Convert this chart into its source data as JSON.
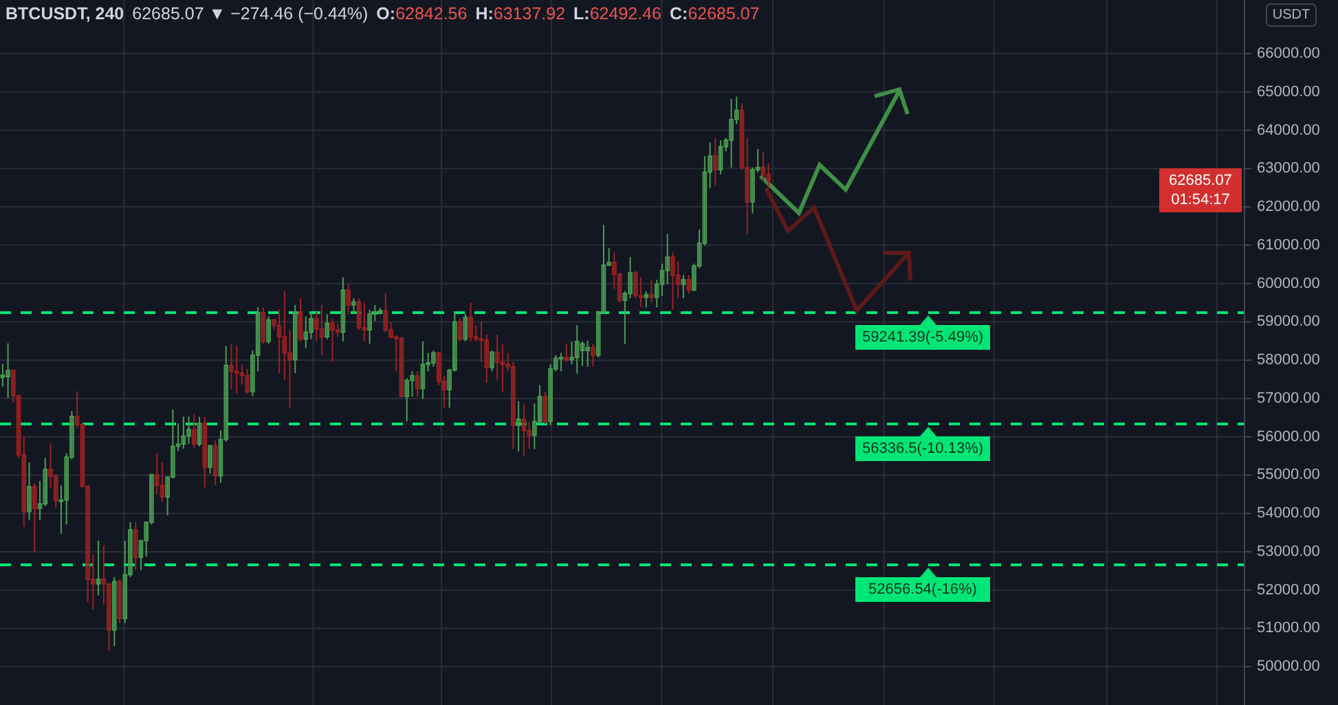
{
  "chart_data": {
    "type": "candlestick",
    "title": "BTCUSDT, 240",
    "subtitle": "62685.07 ▼ −274.46 (−0.44%)",
    "ylabel": "USDT",
    "categories": [
      null,
      null,
      null,
      null,
      null,
      null,
      null,
      null,
      null,
      null,
      null,
      null,
      null,
      null,
      null,
      null,
      null,
      null,
      null,
      null,
      null,
      null,
      null,
      null,
      null,
      null,
      null,
      null,
      null,
      null,
      null,
      null,
      null,
      null,
      null,
      null,
      null,
      null,
      null,
      null,
      null,
      null,
      null,
      null,
      null,
      null,
      null,
      null,
      null,
      null,
      null,
      null,
      null,
      null,
      null,
      null,
      null,
      null,
      null,
      null,
      null,
      null,
      null,
      null,
      null,
      null,
      null,
      null,
      null,
      null,
      null,
      null,
      null,
      null,
      null,
      null,
      null,
      null,
      null,
      null,
      null,
      null,
      null,
      null,
      null,
      null,
      null,
      null,
      null,
      null,
      null,
      null,
      null,
      null,
      null,
      null,
      null,
      null,
      null,
      null,
      null,
      null,
      null,
      null,
      null,
      null,
      null,
      null,
      null,
      null,
      null,
      null,
      null,
      null,
      null,
      null,
      null,
      null,
      null,
      null,
      null,
      null,
      null,
      null,
      null,
      null,
      null,
      null,
      null,
      null,
      null,
      null,
      null,
      null,
      null,
      null,
      null,
      null,
      null,
      null,
      null,
      null,
      null,
      null,
      null,
      null,
      null,
      null,
      null,
      null,
      null,
      null,
      null,
      null,
      null,
      null,
      null,
      null,
      null,
      null,
      null,
      null,
      null,
      null,
      null,
      null,
      null,
      null,
      null,
      null,
      null,
      null,
      null,
      null,
      null,
      null,
      null,
      null,
      null,
      null,
      null,
      null,
      null,
      null,
      null,
      null,
      null,
      null,
      null,
      null,
      null,
      null,
      null,
      null,
      null,
      null,
      null,
      null,
      null,
      null,
      null,
      null,
      null,
      null,
      null,
      null,
      null,
      null,
      null,
      null,
      null,
      null,
      null,
      null,
      null,
      null,
      null,
      null,
      null,
      null,
      null,
      null,
      null,
      null,
      null,
      null,
      null,
      null,
      null,
      null,
      null,
      null,
      null,
      null
    ],
    "ohlc": [
      [
        57550,
        57900,
        57310,
        57610
      ],
      [
        57570,
        58440,
        57010,
        57730
      ],
      [
        57730,
        57750,
        56890,
        57070
      ],
      [
        57070,
        57100,
        55450,
        55530
      ],
      [
        55530,
        55990,
        53650,
        54050
      ],
      [
        54050,
        55330,
        53830,
        54700
      ],
      [
        54700,
        54790,
        52990,
        54130
      ],
      [
        54130,
        54850,
        53830,
        54250
      ],
      [
        54250,
        55450,
        54190,
        55150
      ],
      [
        55150,
        55830,
        54670,
        54970
      ],
      [
        54970,
        55030,
        54160,
        54340
      ],
      [
        54340,
        54730,
        53470,
        54350
      ],
      [
        54350,
        55570,
        53710,
        55470
      ],
      [
        55470,
        56670,
        55410,
        56530
      ],
      [
        56530,
        57190,
        56230,
        56320
      ],
      [
        56320,
        56350,
        54670,
        54710
      ],
      [
        54710,
        54730,
        51680,
        52280
      ],
      [
        52280,
        52930,
        51500,
        52160
      ],
      [
        52160,
        53290,
        51860,
        52280
      ],
      [
        52280,
        53170,
        51620,
        52160
      ],
      [
        52160,
        52160,
        50420,
        50960
      ],
      [
        50960,
        52340,
        50540,
        52220
      ],
      [
        52220,
        52280,
        51140,
        51260
      ],
      [
        51260,
        53290,
        51140,
        52400
      ],
      [
        52400,
        53770,
        52340,
        53570
      ],
      [
        53570,
        53770,
        52520,
        52850
      ],
      [
        52850,
        53290,
        52520,
        53290
      ],
      [
        53290,
        53770,
        52870,
        53770
      ],
      [
        53770,
        55030,
        53710,
        55010
      ],
      [
        55010,
        55570,
        54490,
        54730
      ],
      [
        54730,
        55330,
        54310,
        54430
      ],
      [
        54430,
        54950,
        53950,
        54950
      ],
      [
        54950,
        56710,
        54910,
        55750
      ],
      [
        55750,
        56350,
        55630,
        55810
      ],
      [
        55810,
        56530,
        55690,
        56020
      ],
      [
        56020,
        56530,
        55810,
        56190
      ],
      [
        56190,
        56590,
        55690,
        55810
      ],
      [
        55810,
        56520,
        55750,
        56350
      ],
      [
        56350,
        56520,
        54680,
        55210
      ],
      [
        55210,
        55770,
        55040,
        55770
      ],
      [
        55770,
        55900,
        54740,
        54980
      ],
      [
        54980,
        56170,
        54800,
        55930
      ],
      [
        55930,
        58370,
        55870,
        57860
      ],
      [
        57860,
        58430,
        57240,
        57710
      ],
      [
        57710,
        58370,
        57120,
        57660
      ],
      [
        57660,
        57890,
        57360,
        57600
      ],
      [
        57600,
        57770,
        57120,
        57180
      ],
      [
        57180,
        58250,
        57060,
        58130
      ],
      [
        58130,
        59380,
        57710,
        59240
      ],
      [
        59240,
        59380,
        58430,
        58490
      ],
      [
        58490,
        59140,
        58430,
        59050
      ],
      [
        59050,
        59080,
        58790,
        58910
      ],
      [
        58910,
        59320,
        57660,
        58610
      ],
      [
        58610,
        59800,
        57480,
        58190
      ],
      [
        58190,
        58790,
        56760,
        58010
      ],
      [
        58010,
        59440,
        57660,
        59260
      ],
      [
        59260,
        59620,
        58490,
        58550
      ],
      [
        58550,
        59140,
        58310,
        58730
      ],
      [
        58730,
        59260,
        58550,
        59080
      ],
      [
        59080,
        59260,
        58490,
        58810
      ],
      [
        58810,
        59440,
        58130,
        58610
      ],
      [
        58610,
        59200,
        58550,
        58960
      ],
      [
        58960,
        59080,
        57950,
        58790
      ],
      [
        58790,
        58950,
        58610,
        58730
      ],
      [
        58730,
        60160,
        58490,
        59830
      ],
      [
        59830,
        59980,
        59200,
        59440
      ],
      [
        59440,
        59620,
        59200,
        59520
      ],
      [
        59520,
        59620,
        58790,
        58850
      ],
      [
        58850,
        59500,
        58490,
        58790
      ],
      [
        58790,
        59320,
        58430,
        59200
      ],
      [
        59200,
        59440,
        59020,
        59260
      ],
      [
        59260,
        59360,
        59200,
        59290
      ],
      [
        59290,
        59760,
        58730,
        58790
      ],
      [
        58790,
        59000,
        58570,
        58600
      ],
      [
        58600,
        58650,
        57710,
        58570
      ],
      [
        58570,
        58600,
        57050,
        57050
      ],
      [
        57050,
        57530,
        56400,
        57470
      ],
      [
        57470,
        57710,
        57050,
        57590
      ],
      [
        57590,
        57710,
        57050,
        57260
      ],
      [
        57260,
        58490,
        56990,
        57890
      ],
      [
        57890,
        58190,
        57710,
        57930
      ],
      [
        57930,
        58250,
        57830,
        58190
      ],
      [
        58190,
        58210,
        57350,
        57450
      ],
      [
        57450,
        57590,
        56760,
        57230
      ],
      [
        57230,
        57770,
        56760,
        57740
      ],
      [
        57740,
        59270,
        57710,
        59000
      ],
      [
        59000,
        59090,
        58490,
        58550
      ],
      [
        58550,
        59210,
        58490,
        59120
      ],
      [
        59120,
        59510,
        58490,
        58610
      ],
      [
        58610,
        58910,
        58490,
        58550
      ],
      [
        58550,
        59000,
        57950,
        58520
      ],
      [
        58520,
        58670,
        57410,
        57810
      ],
      [
        57810,
        58250,
        57710,
        58210
      ],
      [
        58210,
        58670,
        57470,
        57950
      ],
      [
        57950,
        58430,
        57170,
        57890
      ],
      [
        57890,
        58190,
        57710,
        57830
      ],
      [
        57830,
        57950,
        55680,
        56300
      ],
      [
        56300,
        56930,
        55620,
        56460
      ],
      [
        56460,
        56870,
        55500,
        56160
      ],
      [
        56160,
        56400,
        55680,
        56040
      ],
      [
        56040,
        56870,
        55680,
        56400
      ],
      [
        56400,
        57350,
        56340,
        57050
      ],
      [
        57050,
        57170,
        56340,
        56400
      ],
      [
        56400,
        57890,
        56300,
        57770
      ],
      [
        57770,
        58130,
        57710,
        58050
      ],
      [
        58050,
        58190,
        57710,
        58070
      ],
      [
        58070,
        58430,
        57950,
        58010
      ],
      [
        58010,
        58490,
        57890,
        58070
      ],
      [
        58070,
        58910,
        57650,
        58490
      ],
      [
        58250,
        58490,
        57850,
        58430
      ],
      [
        58250,
        58510,
        57830,
        58330
      ],
      [
        58330,
        58430,
        57830,
        58130
      ],
      [
        58130,
        59290,
        58070,
        59260
      ],
      [
        59260,
        61530,
        59200,
        60480
      ],
      [
        60480,
        60930,
        60460,
        60550
      ],
      [
        60550,
        60810,
        59860,
        60240
      ],
      [
        60240,
        60280,
        59500,
        59560
      ],
      [
        59560,
        59800,
        58420,
        59740
      ],
      [
        59740,
        60690,
        59620,
        60280
      ],
      [
        60280,
        60340,
        59620,
        59680
      ],
      [
        59680,
        60160,
        59380,
        59640
      ],
      [
        59640,
        59800,
        59380,
        59710
      ],
      [
        59710,
        60100,
        59500,
        59640
      ],
      [
        59640,
        60100,
        59380,
        59980
      ],
      [
        59980,
        60520,
        59680,
        60340
      ],
      [
        60340,
        61290,
        59980,
        60690
      ],
      [
        60690,
        60810,
        59320,
        60220
      ],
      [
        60220,
        60580,
        59620,
        59980
      ],
      [
        59980,
        60220,
        59620,
        60100
      ],
      [
        60100,
        60220,
        59740,
        59830
      ],
      [
        59830,
        60520,
        59800,
        60460
      ],
      [
        60460,
        61410,
        60400,
        61050
      ],
      [
        61050,
        63330,
        60990,
        62910
      ],
      [
        62910,
        63680,
        62490,
        63330
      ],
      [
        63330,
        63800,
        62550,
        62970
      ],
      [
        62970,
        63740,
        62850,
        63570
      ],
      [
        63570,
        63800,
        63450,
        63740
      ],
      [
        63740,
        64820,
        63030,
        64280
      ],
      [
        64280,
        64880,
        64160,
        64520
      ],
      [
        64520,
        64700,
        62970,
        63030
      ],
      [
        63030,
        63800,
        61290,
        62130
      ],
      [
        62130,
        63030,
        61830,
        62970
      ],
      [
        62970,
        63510,
        62900,
        63030
      ],
      [
        63030,
        63450,
        62670,
        62840
      ],
      [
        62842.56,
        63137.92,
        62492.46,
        62685.07
      ],
      null,
      null,
      null,
      null,
      null,
      null,
      null,
      null,
      null,
      null,
      null,
      null,
      null,
      null,
      null,
      null,
      null,
      null,
      null,
      null,
      null,
      null,
      null,
      null,
      null,
      null,
      null,
      null,
      null,
      null,
      null,
      null,
      null,
      null,
      null,
      null,
      null,
      null,
      null,
      null,
      null,
      null,
      null,
      null,
      null,
      null,
      null,
      null,
      null,
      null,
      null,
      null,
      null,
      null,
      null,
      null,
      null,
      null,
      null,
      null,
      null,
      null,
      null,
      null,
      null,
      null,
      null,
      null,
      null,
      null,
      null,
      null,
      null,
      null,
      null,
      null,
      null,
      null,
      null,
      null,
      null,
      null,
      null,
      null,
      null,
      null,
      null,
      null,
      null
    ],
    "colors": [
      "#4a9e52",
      "#4a9e52",
      "#9c2222",
      "#9c2222",
      "#9c2222",
      "#4a9e52",
      "#9c2222",
      "#4a9e52",
      "#4a9e52",
      "#9c2222",
      "#9c2222",
      "#4a9e52",
      "#4a9e52",
      "#4a9e52",
      "#9c2222",
      "#9c2222",
      "#9c2222",
      "#9c2222",
      "#4a9e52",
      "#9c2222",
      "#9c2222",
      "#4a9e52",
      "#9c2222",
      "#4a9e52",
      "#4a9e52",
      "#9c2222",
      "#4a9e52",
      "#4a9e52",
      "#4a9e52",
      "#9c2222",
      "#9c2222",
      "#4a9e52",
      "#4a9e52",
      "#4a9e52",
      "#4a9e52",
      "#4a9e52",
      "#9c2222",
      "#4a9e52",
      "#9c2222",
      "#4a9e52",
      "#9c2222",
      "#4a9e52",
      "#4a9e52",
      "#9c2222",
      "#9c2222",
      "#9c2222",
      "#9c2222",
      "#4a9e52",
      "#4a9e52",
      "#9c2222",
      "#4a9e52",
      "#9c2222",
      "#9c2222",
      "#9c2222",
      "#9c2222",
      "#4a9e52",
      "#9c2222",
      "#4a9e52",
      "#4a9e52",
      "#9c2222",
      "#9c2222",
      "#4a9e52",
      "#9c2222",
      "#9c2222",
      "#4a9e52",
      "#9c2222",
      "#4a9e52",
      "#9c2222",
      "#9c2222",
      "#4a9e52",
      "#4a9e52",
      "#4a9e52",
      "#9c2222",
      "#9c2222",
      "#9c2222",
      "#9c2222",
      "#4a9e52",
      "#4a9e52",
      "#9c2222",
      "#4a9e52",
      "#4a9e52",
      "#4a9e52",
      "#9c2222",
      "#9c2222",
      "#4a9e52",
      "#4a9e52",
      "#9c2222",
      "#4a9e52",
      "#9c2222",
      "#9c2222",
      "#9c2222",
      "#9c2222",
      "#4a9e52",
      "#9c2222",
      "#9c2222",
      "#9c2222",
      "#9c2222",
      "#4a9e52",
      "#9c2222",
      "#9c2222",
      "#4a9e52",
      "#4a9e52",
      "#9c2222",
      "#4a9e52",
      "#4a9e52",
      "#4a9e52",
      "#9c2222",
      "#4a9e52",
      "#4a9e52",
      "#4a9e52",
      "#4a9e52",
      "#9c2222",
      "#4a9e52",
      "#4a9e52",
      "#4a9e52",
      "#9c2222",
      "#9c2222",
      "#4a9e52",
      "#4a9e52",
      "#9c2222",
      "#9c2222",
      "#4a9e52",
      "#9c2222",
      "#4a9e52",
      "#4a9e52",
      "#4a9e52",
      "#9c2222",
      "#9c2222",
      "#4a9e52",
      "#9c2222",
      "#4a9e52",
      "#4a9e52",
      "#4a9e52",
      "#4a9e52",
      "#9c2222",
      "#4a9e52",
      "#4a9e52",
      "#4a9e52",
      "#4a9e52",
      "#9c2222",
      "#9c2222",
      "#4a9e52",
      "#4a9e52",
      "#9c2222",
      "#9c2222",
      null,
      null,
      null,
      null,
      null,
      null,
      null,
      null,
      null,
      null,
      null,
      null,
      null,
      null,
      null,
      null,
      null,
      null,
      null,
      null,
      null,
      null,
      null,
      null,
      null,
      null,
      null,
      null,
      null,
      null,
      null,
      null,
      null,
      null,
      null,
      null,
      null,
      null,
      null,
      null,
      null,
      null,
      null,
      null,
      null,
      null,
      null,
      null,
      null,
      null,
      null,
      null,
      null,
      null,
      null,
      null,
      null,
      null,
      null,
      null,
      null,
      null,
      null,
      null,
      null,
      null,
      null,
      null,
      null,
      null,
      null,
      null,
      null,
      null,
      null,
      null,
      null,
      null,
      null,
      null,
      null,
      null,
      null,
      null,
      null,
      null,
      null,
      null,
      null
    ],
    "ylim": [
      49000,
      67400
    ],
    "yticks": [
      {
        "value": 50000,
        "label": "50000.00"
      },
      {
        "value": 51000,
        "label": "51000.00"
      },
      {
        "value": 52000,
        "label": "52000.00"
      },
      {
        "value": 53000,
        "label": "53000.00"
      },
      {
        "value": 54000,
        "label": "54000.00"
      },
      {
        "value": 55000,
        "label": "55000.00"
      },
      {
        "value": 56000,
        "label": "56000.00"
      },
      {
        "value": 57000,
        "label": "57000.00"
      },
      {
        "value": 58000,
        "label": "58000.00"
      },
      {
        "value": 59000,
        "label": "59000.00"
      },
      {
        "value": 60000,
        "label": "60000.00"
      },
      {
        "value": 61000,
        "label": "61000.00"
      },
      {
        "value": 62000,
        "label": "62000.00"
      },
      {
        "value": 63000,
        "label": "63000.00"
      },
      {
        "value": 64000,
        "label": "64000.00"
      },
      {
        "value": 65000,
        "label": "65000.00"
      },
      {
        "value": 66000,
        "label": "66000.00"
      }
    ],
    "grid": true,
    "ref_lines": [
      {
        "axis": "y",
        "value": 59241.39,
        "label": "59241.39(-5.49%)",
        "color": "#00e676",
        "line_style": "dashed"
      },
      {
        "axis": "y",
        "value": 56336.5,
        "label": "56336.5(-10.13%)",
        "color": "#00e676",
        "line_style": "dashed"
      },
      {
        "axis": "y",
        "value": 52656.54,
        "label": "52656.54(-16%)",
        "color": "#00e676",
        "line_style": "dashed"
      }
    ],
    "annotations": [
      "O:62842.56",
      "H:63137.92",
      "L:62492.46",
      "C:62685.07",
      "62685.07",
      "01:54:17"
    ]
  }
}
